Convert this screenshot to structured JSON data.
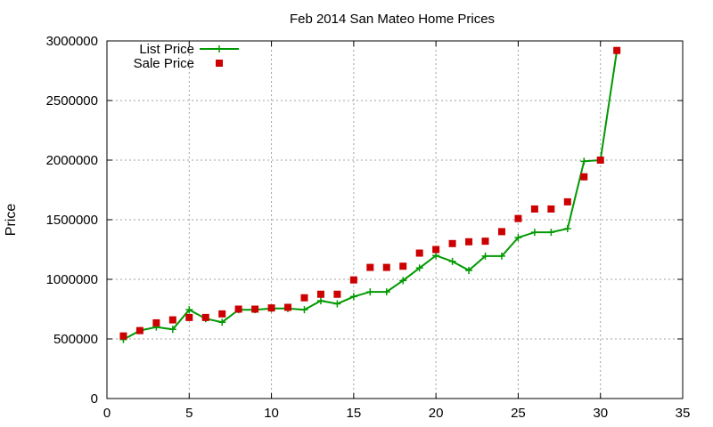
{
  "chart_data": {
    "type": "line",
    "title": "Feb 2014 San Mateo Home Prices",
    "xlabel": "",
    "ylabel": "Price",
    "xlim": [
      0,
      35
    ],
    "ylim": [
      0,
      3000000
    ],
    "xticks": [
      0,
      5,
      10,
      15,
      20,
      25,
      30,
      35
    ],
    "yticks": [
      0,
      500000,
      1000000,
      1500000,
      2000000,
      2500000,
      3000000
    ],
    "grid": true,
    "legend_position": "top-left",
    "series": [
      {
        "name": "List Price",
        "style": "line-with-plus-markers",
        "color": "#009900",
        "x": [
          1,
          2,
          3,
          4,
          5,
          6,
          7,
          8,
          9,
          10,
          11,
          12,
          13,
          14,
          15,
          16,
          17,
          18,
          19,
          20,
          21,
          22,
          23,
          24,
          25,
          26,
          27,
          28,
          29,
          30,
          31
        ],
        "y": [
          495000,
          570000,
          600000,
          580000,
          745000,
          670000,
          640000,
          745000,
          745000,
          755000,
          755000,
          745000,
          820000,
          795000,
          855000,
          895000,
          895000,
          990000,
          1095000,
          1200000,
          1150000,
          1075000,
          1195000,
          1195000,
          1350000,
          1395000,
          1395000,
          1425000,
          1990000,
          2000000,
          2920000
        ]
      },
      {
        "name": "Sale Price",
        "style": "square-markers",
        "color": "#cc0000",
        "x": [
          1,
          2,
          3,
          4,
          5,
          6,
          7,
          8,
          9,
          10,
          11,
          12,
          13,
          14,
          15,
          16,
          17,
          18,
          19,
          20,
          21,
          22,
          23,
          24,
          25,
          26,
          27,
          28,
          29,
          30,
          31
        ],
        "y": [
          525000,
          570000,
          635000,
          660000,
          680000,
          680000,
          710000,
          750000,
          750000,
          760000,
          765000,
          845000,
          875000,
          875000,
          995000,
          1100000,
          1100000,
          1110000,
          1220000,
          1250000,
          1300000,
          1315000,
          1320000,
          1400000,
          1510000,
          1590000,
          1590000,
          1650000,
          1860000,
          2000000,
          2920000
        ]
      }
    ]
  }
}
